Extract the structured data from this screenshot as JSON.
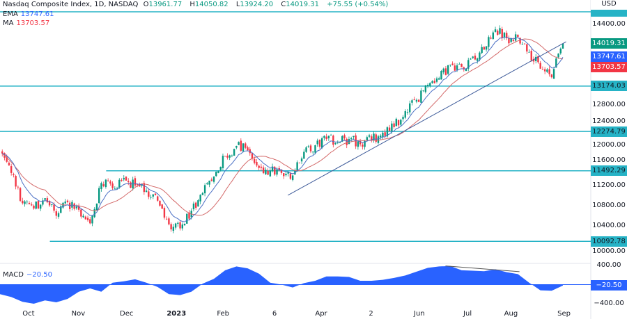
{
  "header": {
    "symbol": "Nasdaq Composite Index, 1D, NASDAQ",
    "open_label": "O",
    "open": "13961.77",
    "high_label": "H",
    "high": "14050.82",
    "low_label": "L",
    "low": "13924.20",
    "close_label": "C",
    "close": "14019.31",
    "change": "+75.55 (+0.54%)"
  },
  "indicators": {
    "ema": {
      "label": "EMA",
      "value": "13747.61",
      "color": "#2962ff"
    },
    "ma": {
      "label": "MA",
      "value": "13703.57",
      "color": "#f23645"
    },
    "macd": {
      "label": "MACD",
      "value": "−20.50",
      "color": "#2962ff"
    }
  },
  "currency": "USD",
  "colors": {
    "up": "#089981",
    "down": "#f23645",
    "level": "#26b3c6",
    "trendline": "#3d5a99",
    "ema_line": "#4a6fc4",
    "ma_line": "#d46a6a"
  },
  "chart_data": [
    {
      "type": "candlestick",
      "title": "Nasdaq Composite Index, 1D, NASDAQ",
      "ylim": [
        10000,
        14700
      ],
      "y_ticks": [
        "14400.00",
        "12800.00",
        "12400.00",
        "12000.00",
        "11600.00",
        "11200.00",
        "10800.00",
        "10400.00",
        "10000.00"
      ],
      "x_ticks": [
        {
          "label": "Oct",
          "date": "2022-10-01"
        },
        {
          "label": "Nov",
          "date": "2022-11-01"
        },
        {
          "label": "Dec",
          "date": "2022-12-01"
        },
        {
          "label": "2023",
          "date": "2023-01-01",
          "bold": true
        },
        {
          "label": "Feb",
          "date": "2023-01-30"
        },
        {
          "label": "6",
          "date": "2023-03-03"
        },
        {
          "label": "Apr",
          "date": "2023-04-01"
        },
        {
          "label": "2",
          "date": "2023-05-02"
        },
        {
          "label": "Jun",
          "date": "2023-06-01"
        },
        {
          "label": "Jul",
          "date": "2023-07-01"
        },
        {
          "label": "Aug",
          "date": "2023-07-28"
        },
        {
          "label": "Sep",
          "date": "2023-08-30"
        }
      ],
      "weekly_closes": [
        [
          "2022-09-12",
          11890
        ],
        [
          "2022-09-19",
          11450
        ],
        [
          "2022-09-26",
          10850
        ],
        [
          "2022-10-03",
          10745
        ],
        [
          "2022-10-10",
          10950
        ],
        [
          "2022-10-17",
          10600
        ],
        [
          "2022-10-24",
          10870
        ],
        [
          "2022-10-31",
          10720
        ],
        [
          "2022-11-07",
          10450
        ],
        [
          "2022-11-14",
          11250
        ],
        [
          "2022-11-21",
          11150
        ],
        [
          "2022-11-28",
          11350
        ],
        [
          "2022-12-05",
          11200
        ],
        [
          "2022-12-12",
          11100
        ],
        [
          "2022-12-19",
          10900
        ],
        [
          "2022-12-26",
          10430
        ],
        [
          "2023-01-02",
          10350
        ],
        [
          "2023-01-09",
          10700
        ],
        [
          "2023-01-16",
          11050
        ],
        [
          "2023-01-23",
          11380
        ],
        [
          "2023-01-30",
          11780
        ],
        [
          "2023-02-06",
          11986
        ],
        [
          "2023-02-13",
          11900
        ],
        [
          "2023-02-20",
          11550
        ],
        [
          "2023-02-27",
          11500
        ],
        [
          "2023-03-06",
          11450
        ],
        [
          "2023-03-13",
          11400
        ],
        [
          "2023-03-20",
          11870
        ],
        [
          "2023-03-27",
          12000
        ],
        [
          "2023-04-03",
          12124
        ],
        [
          "2023-04-10",
          12060
        ],
        [
          "2023-04-17",
          12124
        ],
        [
          "2023-04-24",
          12020
        ],
        [
          "2023-05-01",
          12110
        ],
        [
          "2023-05-08",
          12250
        ],
        [
          "2023-05-15",
          12360
        ],
        [
          "2023-05-22",
          12676
        ],
        [
          "2023-05-29",
          12900
        ],
        [
          "2023-06-05",
          13200
        ],
        [
          "2023-06-12",
          13330
        ],
        [
          "2023-06-19",
          13600
        ],
        [
          "2023-06-26",
          13550
        ],
        [
          "2023-07-03",
          13760
        ],
        [
          "2023-07-10",
          13900
        ],
        [
          "2023-07-17",
          14300
        ],
        [
          "2023-07-24",
          14124
        ],
        [
          "2023-07-31",
          14150
        ],
        [
          "2023-08-07",
          13850
        ],
        [
          "2023-08-14",
          13520
        ],
        [
          "2023-08-21",
          13350
        ],
        [
          "2023-08-28",
          14019.31
        ]
      ],
      "last_price": {
        "value": "14019.31",
        "color": "#089981"
      },
      "ema_label": {
        "value": "13747.61",
        "color": "#2962ff"
      },
      "ma_label": {
        "value": "13703.57",
        "color": "#f23645"
      },
      "levels": [
        {
          "price": 14649,
          "label": "",
          "start_date": null
        },
        {
          "price": 13174.03,
          "label": "13174.03",
          "start_date": null
        },
        {
          "price": 12274.79,
          "label": "12274.79",
          "start_date": null
        },
        {
          "price": 11492.29,
          "label": "11492.29",
          "start_date": "2022-11-17"
        },
        {
          "price": 10092.78,
          "label": "10092.78",
          "start_date": "2022-10-13"
        }
      ],
      "trendline": [
        [
          "2023-03-10",
          11007
        ],
        [
          "2023-08-30",
          14055
        ]
      ]
    },
    {
      "type": "area",
      "title": "MACD",
      "ylim": [
        -450,
        450
      ],
      "y_ticks": [
        "400.00",
        "-400.00"
      ],
      "current": "-20.50",
      "values": [
        -200,
        -260,
        -360,
        -400,
        -330,
        -370,
        -300,
        -150,
        -80,
        -150,
        40,
        70,
        110,
        40,
        -50,
        -200,
        -220,
        -150,
        20,
        120,
        300,
        380,
        340,
        230,
        40,
        0,
        -60,
        30,
        80,
        170,
        170,
        160,
        80,
        80,
        100,
        140,
        190,
        270,
        350,
        380,
        390,
        300,
        290,
        280,
        320,
        260,
        220,
        40,
        -120,
        -130,
        -20.5
      ],
      "divergence_line": [
        [
          "2023-06-16",
          390
        ],
        [
          "2023-08-01",
          270
        ]
      ]
    }
  ]
}
